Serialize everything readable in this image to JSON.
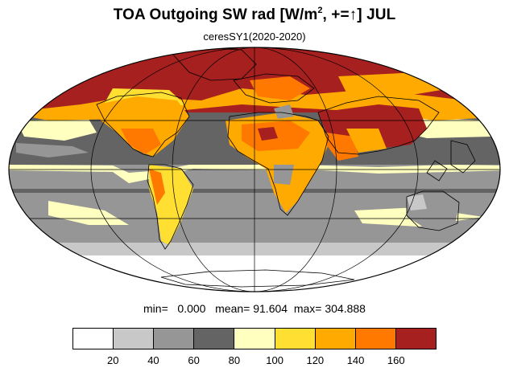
{
  "title": {
    "prefix": "TOA Outgoing SW rad [W/m",
    "sup": "2",
    "suffix": ", +=↑] JUL"
  },
  "subtitle": "ceresSY1(2020-2020)",
  "stats": {
    "min_label": "min=",
    "min_value": "0.000",
    "mean_label": "mean=",
    "mean_value": "91.604",
    "max_label": "max=",
    "max_value": "304.888"
  },
  "colorbar": {
    "colors": [
      "#ffffff",
      "#c8c8c8",
      "#969696",
      "#646464",
      "#ffffc0",
      "#ffe032",
      "#ffaa00",
      "#ff7800",
      "#a5201e"
    ],
    "labels": [
      "20",
      "40",
      "60",
      "80",
      "100",
      "120",
      "140",
      "160"
    ]
  }
}
